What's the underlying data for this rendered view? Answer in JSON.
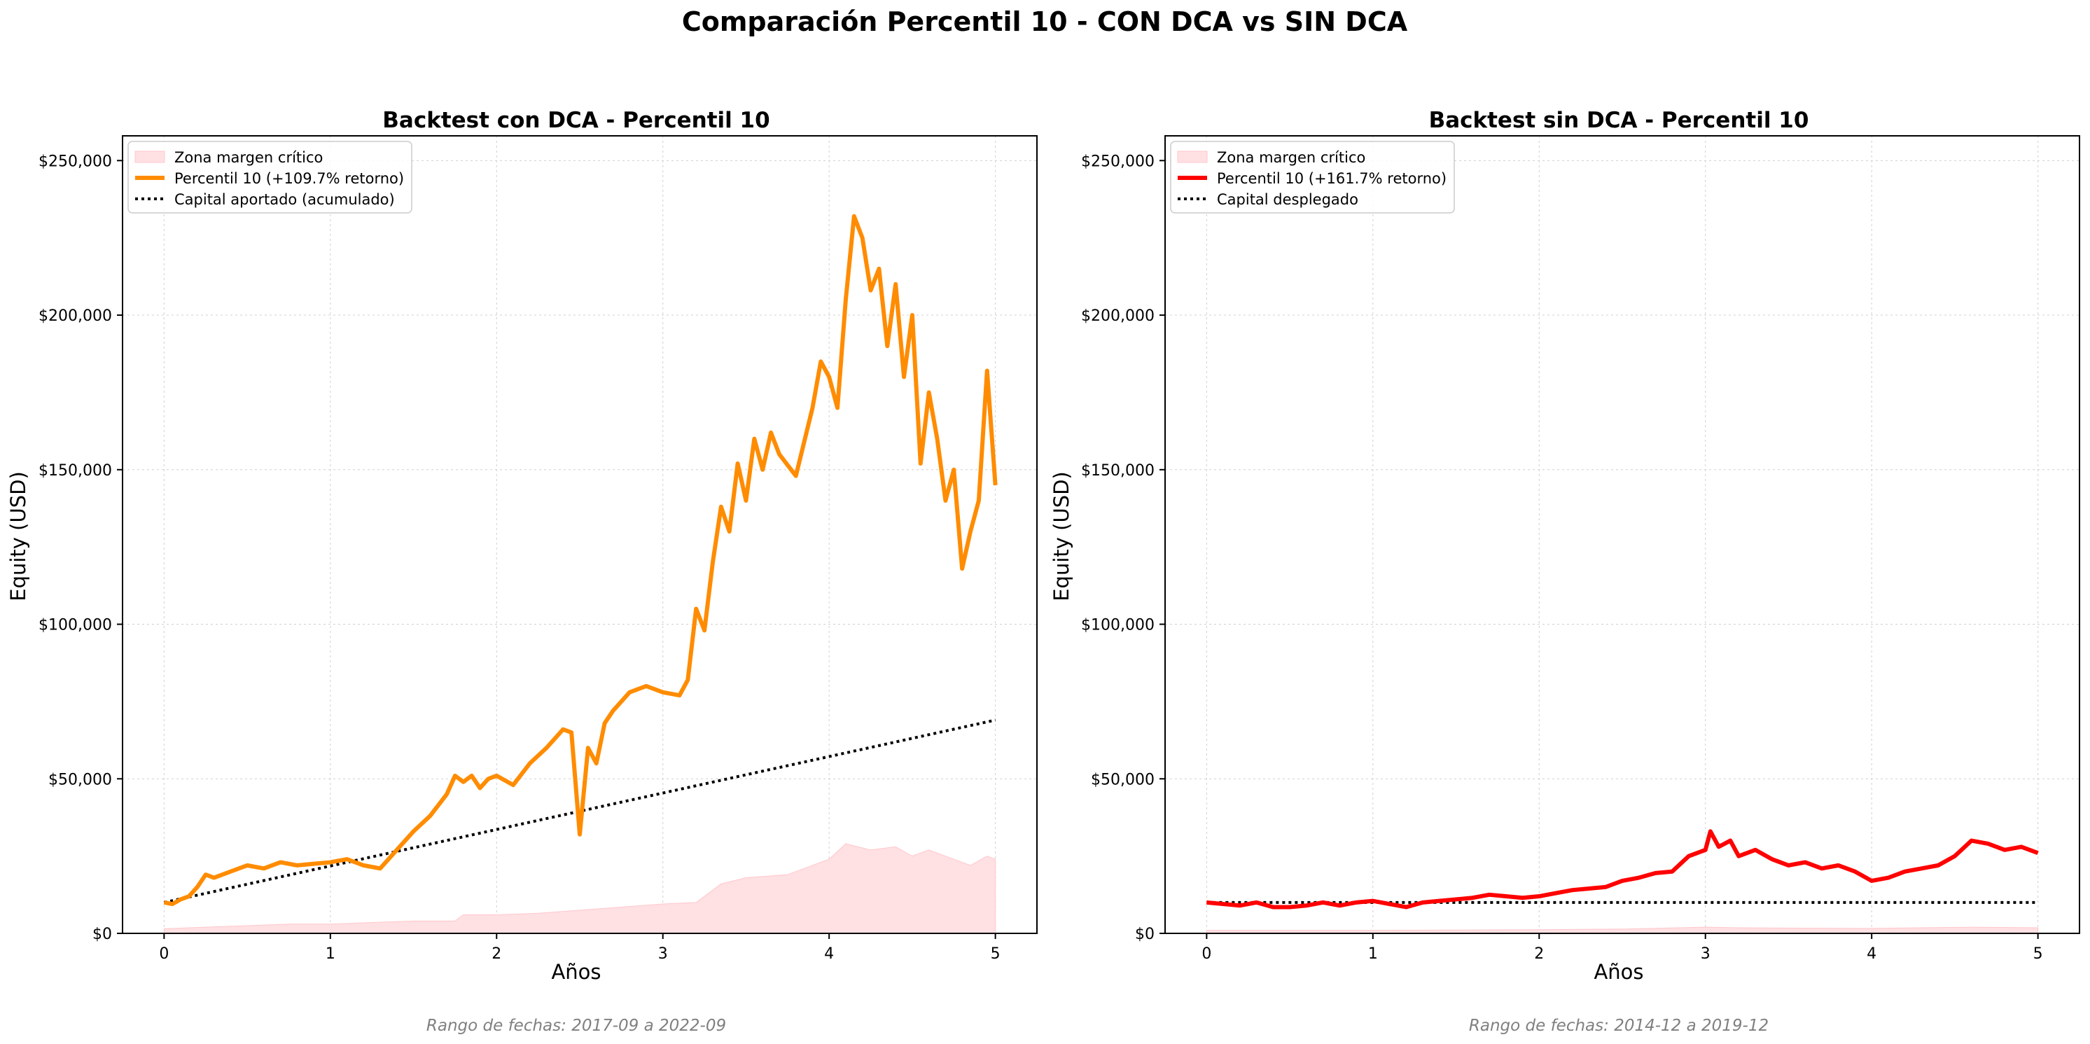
{
  "figure": {
    "suptitle": "Comparación Percentil 10 - CON DCA vs SIN DCA"
  },
  "colors": {
    "dca_line": "#ff8c00",
    "nodca_line": "#ff0000",
    "capital_line": "#000000",
    "margin_fill": "#ffe0e3",
    "grid": "#d0d0d0",
    "footer_text": "#808080"
  },
  "chart_data": [
    {
      "type": "line",
      "title": "Backtest con DCA - Percentil 10",
      "xlabel": "Años",
      "ylabel": "Equity (USD)",
      "xlim": [
        -0.25,
        5.25
      ],
      "ylim": [
        0,
        258000
      ],
      "xticks": [
        0,
        1,
        2,
        3,
        4,
        5
      ],
      "yticks": [
        0,
        50000,
        100000,
        150000,
        200000,
        250000
      ],
      "ytick_labels": [
        "$0",
        "$50,000",
        "$100,000",
        "$150,000",
        "$200,000",
        "$250,000"
      ],
      "grid": true,
      "legend_position": "top-left",
      "footer": "Rango de fechas: 2017-09 a 2022-09",
      "series": [
        {
          "name": "Zona margen crítico",
          "kind": "area",
          "x": [
            0,
            0.25,
            0.5,
            0.75,
            1.0,
            1.25,
            1.5,
            1.75,
            1.8,
            2.0,
            2.25,
            2.5,
            2.75,
            3.0,
            3.2,
            3.35,
            3.5,
            3.75,
            3.9,
            4.0,
            4.1,
            4.25,
            4.4,
            4.5,
            4.6,
            4.75,
            4.85,
            4.95,
            5.0
          ],
          "y": [
            1500,
            2000,
            2500,
            3000,
            3000,
            3500,
            4000,
            4000,
            6000,
            6000,
            6500,
            7500,
            8500,
            9500,
            10000,
            16000,
            18000,
            19000,
            22000,
            24000,
            29000,
            27000,
            28000,
            25000,
            27000,
            24000,
            22000,
            25000,
            24000
          ]
        },
        {
          "name": "Percentil 10 (+109.7% retorno)",
          "kind": "line",
          "x": [
            0,
            0.05,
            0.1,
            0.15,
            0.2,
            0.25,
            0.3,
            0.4,
            0.5,
            0.6,
            0.7,
            0.8,
            0.9,
            1.0,
            1.1,
            1.2,
            1.3,
            1.4,
            1.5,
            1.6,
            1.7,
            1.75,
            1.8,
            1.85,
            1.9,
            1.95,
            2.0,
            2.1,
            2.2,
            2.3,
            2.4,
            2.45,
            2.5,
            2.55,
            2.6,
            2.65,
            2.7,
            2.8,
            2.9,
            3.0,
            3.1,
            3.15,
            3.2,
            3.25,
            3.3,
            3.35,
            3.4,
            3.45,
            3.5,
            3.55,
            3.6,
            3.65,
            3.7,
            3.8,
            3.9,
            3.95,
            4.0,
            4.05,
            4.1,
            4.15,
            4.2,
            4.25,
            4.3,
            4.35,
            4.4,
            4.45,
            4.5,
            4.55,
            4.6,
            4.65,
            4.7,
            4.75,
            4.8,
            4.85,
            4.9,
            4.95,
            5.0
          ],
          "y": [
            10000,
            9500,
            11000,
            12000,
            15000,
            19000,
            18000,
            20000,
            22000,
            21000,
            23000,
            22000,
            22500,
            23000,
            24000,
            22000,
            21000,
            27000,
            33000,
            38000,
            45000,
            51000,
            49000,
            51000,
            47000,
            50000,
            51000,
            48000,
            55000,
            60000,
            66000,
            65000,
            32000,
            60000,
            55000,
            68000,
            72000,
            78000,
            80000,
            78000,
            77000,
            82000,
            105000,
            98000,
            120000,
            138000,
            130000,
            152000,
            140000,
            160000,
            150000,
            162000,
            155000,
            148000,
            170000,
            185000,
            180000,
            170000,
            205000,
            232000,
            225000,
            208000,
            215000,
            190000,
            210000,
            180000,
            200000,
            152000,
            175000,
            160000,
            140000,
            150000,
            118000,
            130000,
            140000,
            182000,
            145000
          ]
        },
        {
          "name": "Capital aportado (acumulado)",
          "kind": "dotted",
          "x": [
            0,
            5
          ],
          "y": [
            10000,
            69000
          ]
        }
      ]
    },
    {
      "type": "line",
      "title": "Backtest sin DCA - Percentil 10",
      "xlabel": "Años",
      "ylabel": "Equity (USD)",
      "xlim": [
        -0.25,
        5.25
      ],
      "ylim": [
        0,
        258000
      ],
      "xticks": [
        0,
        1,
        2,
        3,
        4,
        5
      ],
      "yticks": [
        0,
        50000,
        100000,
        150000,
        200000,
        250000
      ],
      "ytick_labels": [
        "$0",
        "$50,000",
        "$100,000",
        "$150,000",
        "$200,000",
        "$250,000"
      ],
      "grid": true,
      "legend_position": "top-left",
      "footer": "Rango de fechas: 2014-12 a 2019-12",
      "series": [
        {
          "name": "Zona margen crítico",
          "kind": "area",
          "x": [
            0,
            1,
            2,
            2.5,
            3.0,
            3.2,
            4.0,
            4.6,
            5.0
          ],
          "y": [
            1000,
            1000,
            1200,
            1400,
            2000,
            1800,
            1600,
            2000,
            1800
          ]
        },
        {
          "name": "Percentil 10 (+161.7% retorno)",
          "kind": "line",
          "x": [
            0,
            0.1,
            0.2,
            0.3,
            0.4,
            0.5,
            0.6,
            0.7,
            0.8,
            0.9,
            1.0,
            1.1,
            1.2,
            1.3,
            1.4,
            1.5,
            1.6,
            1.7,
            1.8,
            1.9,
            2.0,
            2.1,
            2.2,
            2.3,
            2.4,
            2.5,
            2.6,
            2.7,
            2.8,
            2.9,
            3.0,
            3.03,
            3.08,
            3.15,
            3.2,
            3.3,
            3.4,
            3.5,
            3.6,
            3.7,
            3.8,
            3.9,
            4.0,
            4.1,
            4.2,
            4.3,
            4.4,
            4.5,
            4.6,
            4.7,
            4.8,
            4.9,
            5.0
          ],
          "y": [
            10000,
            9500,
            9000,
            10000,
            8500,
            8500,
            9000,
            10000,
            9000,
            10000,
            10500,
            9500,
            8500,
            10000,
            10500,
            11000,
            11500,
            12500,
            12000,
            11500,
            12000,
            13000,
            14000,
            14500,
            15000,
            17000,
            18000,
            19500,
            20000,
            25000,
            27000,
            33000,
            28000,
            30000,
            25000,
            27000,
            24000,
            22000,
            23000,
            21000,
            22000,
            20000,
            17000,
            18000,
            20000,
            21000,
            22000,
            25000,
            30000,
            29000,
            27000,
            28000,
            26000
          ]
        },
        {
          "name": "Capital desplegado",
          "kind": "dotted",
          "x": [
            0,
            5
          ],
          "y": [
            10000,
            10000
          ]
        }
      ]
    }
  ]
}
